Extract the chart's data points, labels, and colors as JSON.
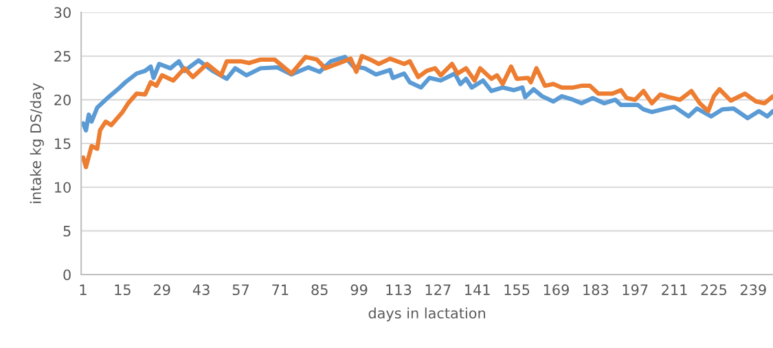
{
  "chart_data": {
    "type": "line",
    "xlabel": "days in lactation",
    "ylabel": "intake kg DS/day",
    "xlim": [
      0.3,
      246
    ],
    "xticks": [
      1,
      15,
      29,
      43,
      57,
      71,
      85,
      99,
      113,
      127,
      141,
      155,
      169,
      183,
      197,
      211,
      225,
      239
    ],
    "ylim": [
      0,
      30
    ],
    "yticks": [
      0,
      5,
      10,
      15,
      20,
      25,
      30
    ],
    "grid": "y",
    "legend": false,
    "marker": "none",
    "line_style": "solid",
    "series": [
      {
        "color": "#5b9bd5",
        "x": [
          1,
          2,
          3,
          4,
          6,
          10,
          14,
          16,
          20,
          23,
          25,
          26,
          28,
          32,
          35,
          37,
          42,
          47,
          52,
          55,
          59,
          64,
          70,
          75,
          81,
          85,
          89,
          94,
          97,
          101,
          105,
          110,
          111,
          115,
          117,
          121,
          124,
          128,
          133,
          135,
          137,
          139,
          143,
          146,
          150,
          154,
          157,
          158,
          161,
          164,
          168,
          171,
          175,
          178,
          182,
          186,
          190,
          192,
          198,
          200,
          203,
          208,
          211,
          216,
          219,
          224,
          228,
          232,
          237,
          241,
          244,
          246
        ],
        "values": [
          17.3,
          16.5,
          18.3,
          17.5,
          19.1,
          20.3,
          21.4,
          22.0,
          23.0,
          23.3,
          23.8,
          22.5,
          24.1,
          23.6,
          24.4,
          23.3,
          24.5,
          23.3,
          22.4,
          23.6,
          22.8,
          23.6,
          23.7,
          22.9,
          23.7,
          23.2,
          24.4,
          24.9,
          23.8,
          23.6,
          22.9,
          23.4,
          22.5,
          23.0,
          22.0,
          21.4,
          22.5,
          22.2,
          23.0,
          21.8,
          22.4,
          21.4,
          22.2,
          21.0,
          21.4,
          21.1,
          21.4,
          20.3,
          21.2,
          20.4,
          19.8,
          20.4,
          20.0,
          19.6,
          20.2,
          19.6,
          20.0,
          19.4,
          19.4,
          18.9,
          18.6,
          19.0,
          19.2,
          18.1,
          19.0,
          18.1,
          18.9,
          19.0,
          17.9,
          18.7,
          18.1,
          18.7
        ]
      },
      {
        "color": "#ed7d31",
        "x": [
          1,
          2,
          4,
          6,
          7,
          9,
          11,
          15,
          17,
          20,
          23,
          25,
          27,
          29,
          33,
          35,
          37,
          40,
          45,
          50,
          52,
          57,
          60,
          64,
          69,
          75,
          80,
          84,
          87,
          92,
          96,
          98,
          100,
          103,
          106,
          110,
          115,
          117,
          120,
          123,
          126,
          128,
          132,
          134,
          137,
          140,
          142,
          146,
          148,
          150,
          153,
          155,
          159,
          160,
          162,
          165,
          168,
          171,
          175,
          178,
          181,
          184,
          189,
          192,
          194,
          197,
          200,
          203,
          206,
          209,
          213,
          217,
          220,
          223,
          225,
          227,
          231,
          236,
          240,
          243,
          246
        ],
        "values": [
          13.4,
          12.3,
          14.7,
          14.4,
          16.5,
          17.5,
          17.1,
          18.6,
          19.6,
          20.7,
          20.6,
          22.0,
          21.6,
          22.8,
          22.2,
          22.9,
          23.6,
          22.6,
          24.1,
          22.8,
          24.4,
          24.4,
          24.2,
          24.6,
          24.6,
          23.0,
          24.9,
          24.6,
          23.6,
          24.2,
          24.7,
          23.2,
          25.0,
          24.6,
          24.1,
          24.7,
          24.1,
          24.4,
          22.6,
          23.3,
          23.6,
          22.8,
          24.1,
          23.0,
          23.6,
          22.2,
          23.6,
          22.4,
          22.8,
          21.8,
          23.8,
          22.4,
          22.5,
          22.0,
          23.6,
          21.6,
          21.8,
          21.4,
          21.4,
          21.6,
          21.6,
          20.7,
          20.7,
          21.1,
          20.2,
          20.0,
          21.0,
          19.6,
          20.6,
          20.3,
          20.0,
          21.0,
          19.6,
          18.7,
          20.4,
          21.2,
          19.9,
          20.7,
          19.8,
          19.6,
          20.4
        ]
      }
    ]
  }
}
